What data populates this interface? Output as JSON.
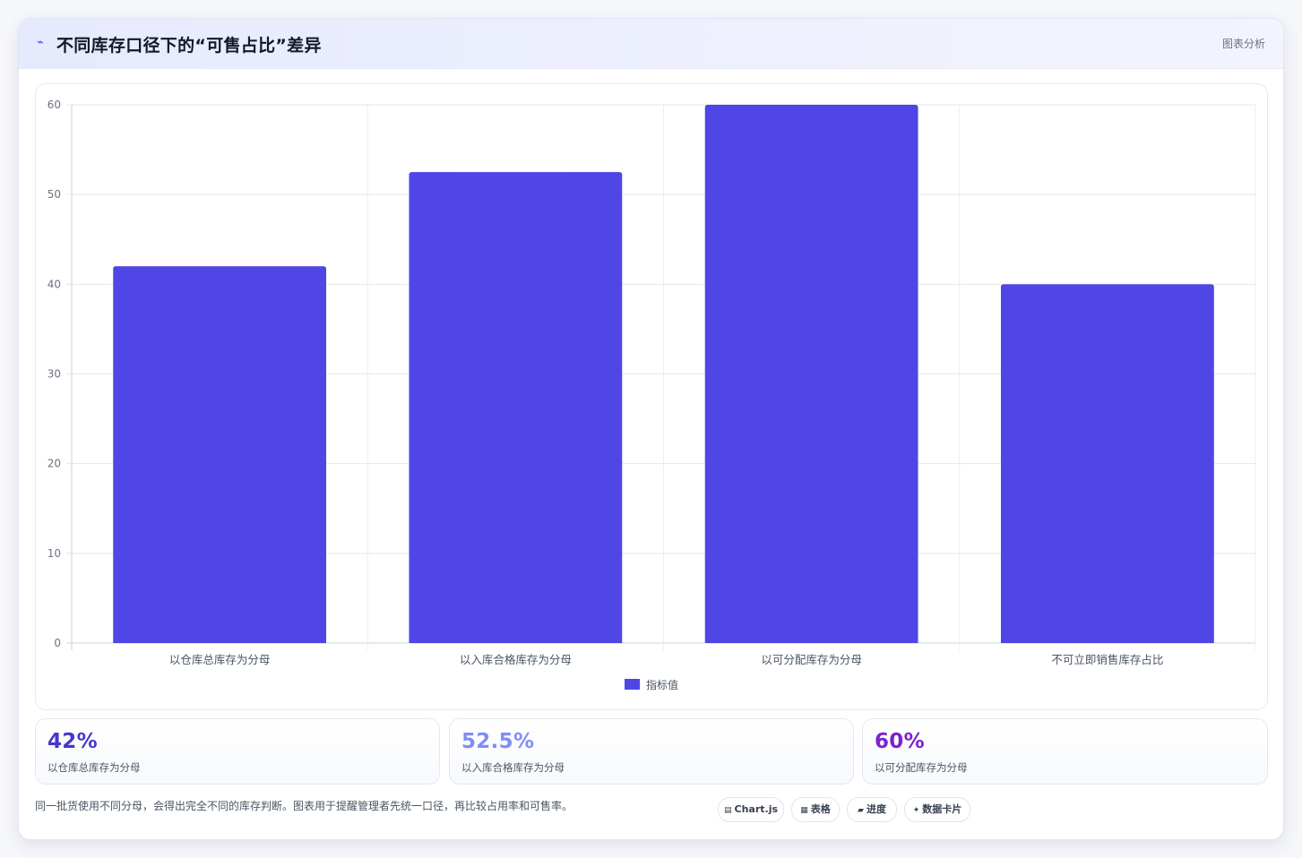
{
  "header": {
    "title": "不同库存口径下的“可售占比”差异",
    "icon": "trend-icon",
    "right_label": "图表分析"
  },
  "chart_data": {
    "type": "bar",
    "categories": [
      "以仓库总库存为分母",
      "以入库合格库存为分母",
      "以可分配库存为分母",
      "不可立即销售库存占比"
    ],
    "series": [
      {
        "name": "指标值",
        "values": [
          42,
          52.5,
          60,
          40
        ],
        "color": "#4f46e5"
      }
    ],
    "ylim": [
      0,
      60
    ],
    "yticks": [
      0,
      10,
      20,
      30,
      40,
      50,
      60
    ],
    "grid": true,
    "legend": "bottom"
  },
  "stats": [
    {
      "value": "42%",
      "label": "以仓库总库存为分母",
      "color": "#4338ca"
    },
    {
      "value": "52.5%",
      "label": "以入库合格库存为分母",
      "color": "#818cf8"
    },
    {
      "value": "60%",
      "label": "以可分配库存为分母",
      "color": "#7e22ce"
    }
  ],
  "footnote": "同一批货使用不同分母，会得出完全不同的库存判断。图表用于提醒管理者先统一口径，再比较占用率和可售率。",
  "tags": [
    {
      "icon": "chart-icon",
      "glyph": "▤",
      "label": "Chart.js"
    },
    {
      "icon": "table-icon",
      "glyph": "▦",
      "label": "表格"
    },
    {
      "icon": "progress-icon",
      "glyph": "▰",
      "label": "进度"
    },
    {
      "icon": "sparkle-icon",
      "glyph": "✦",
      "label": "数据卡片"
    }
  ]
}
